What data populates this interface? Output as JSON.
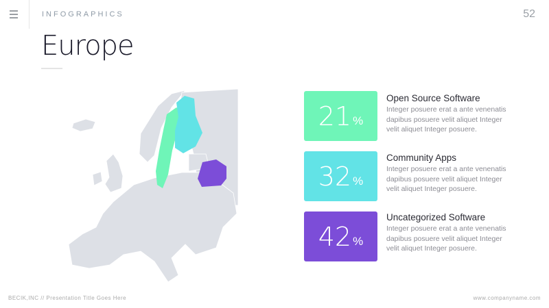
{
  "header": {
    "section": "INFOGRAPHICS",
    "page_number": "52",
    "menu_icon": "hamburger-icon"
  },
  "title": "Europe",
  "map": {
    "base_color": "#dde0e6",
    "highlights": [
      {
        "region": "Scandinavia",
        "color": "#6ff5b8"
      },
      {
        "region": "Finland",
        "color": "#62e3e6"
      },
      {
        "region": "Belarus",
        "color": "#7c4dd8"
      }
    ]
  },
  "stats": [
    {
      "value": "21",
      "unit": "%",
      "color": "#6ff5b8",
      "heading": "Open Source Software",
      "description": "Integer posuere erat a ante venenatis dapibus posuere velit aliquet Integer velit aliquet Integer posuere."
    },
    {
      "value": "32",
      "unit": "%",
      "color": "#62e3e6",
      "heading": "Community Apps",
      "description": "Integer posuere erat a ante venenatis dapibus posuere velit aliquet Integer velit aliquet Integer posuere."
    },
    {
      "value": "42",
      "unit": "%",
      "color": "#7c4dd8",
      "heading": "Uncategorized Software",
      "description": "Integer posuere erat a ante venenatis dapibus posuere velit aliquet Integer velit aliquet Integer posuere."
    }
  ],
  "footer": {
    "left": "BECIK,INC // Presentation Title Goes Here",
    "right": "www.companyname.com"
  }
}
